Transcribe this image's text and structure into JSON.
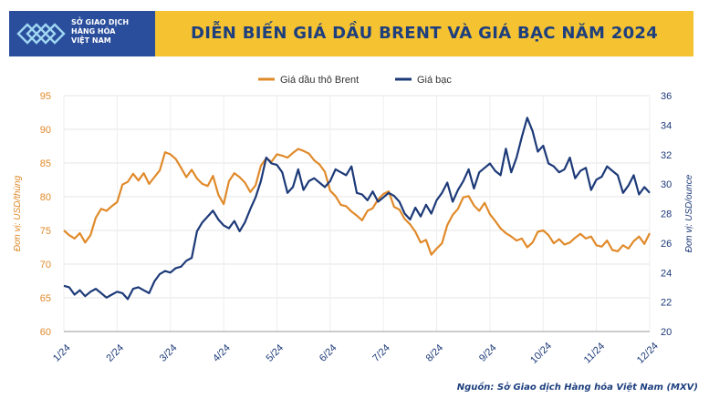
{
  "title": "DIỄN BIẾN GIÁ DẦU BRENT VÀ GIÁ BẠC NĂM 2024",
  "logo": {
    "lines": [
      "SỞ GIAO DỊCH",
      "HÀNG HÓA",
      "VIỆT NAM"
    ],
    "icon": "mxv-logo-icon"
  },
  "source": "Nguồn: Sở Giao dịch Hàng hóa Việt Nam (MXV)",
  "colors": {
    "brent": "#e08a2a",
    "silver": "#1d3a78",
    "title_band": "#f5c232",
    "logo_bg": "#2a4e9c"
  },
  "chart_data": {
    "type": "line",
    "title": "DIỄN BIẾN GIÁ DẦU BRENT VÀ GIÁ BẠC NĂM 2024",
    "x_tick_labels": [
      "1/24",
      "2/24",
      "3/24",
      "4/24",
      "5/24",
      "6/24",
      "7/24",
      "8/24",
      "9/24",
      "10/24",
      "11/24",
      "12/24"
    ],
    "legend": {
      "placement": "top-center"
    },
    "y_left": {
      "label": "Đơn vị: USD/thùng",
      "ylim": [
        60,
        95
      ],
      "ticks": [
        60,
        65,
        70,
        75,
        80,
        85,
        90,
        95
      ]
    },
    "y_right": {
      "label": "Đơn vị: USD/ounce",
      "ylim": [
        20,
        36
      ],
      "ticks": [
        20,
        22,
        24,
        26,
        28,
        30,
        32,
        34,
        36
      ]
    },
    "grid": true,
    "series": [
      {
        "name": "Giá dầu thô Brent",
        "axis": "left",
        "x": [
          0,
          0.1,
          0.2,
          0.3,
          0.4,
          0.5,
          0.6,
          0.7,
          0.8,
          0.9,
          1.0,
          1.1,
          1.2,
          1.3,
          1.4,
          1.5,
          1.6,
          1.7,
          1.8,
          1.9,
          2.0,
          2.1,
          2.2,
          2.3,
          2.4,
          2.5,
          2.6,
          2.7,
          2.8,
          2.9,
          3.0,
          3.1,
          3.2,
          3.3,
          3.4,
          3.5,
          3.6,
          3.7,
          3.8,
          3.9,
          4.0,
          4.1,
          4.2,
          4.3,
          4.4,
          4.5,
          4.6,
          4.7,
          4.8,
          4.9,
          5.0,
          5.1,
          5.2,
          5.3,
          5.4,
          5.5,
          5.6,
          5.7,
          5.8,
          5.9,
          6.0,
          6.1,
          6.2,
          6.3,
          6.4,
          6.5,
          6.6,
          6.7,
          6.8,
          6.9,
          7.0,
          7.1,
          7.2,
          7.3,
          7.4,
          7.5,
          7.6,
          7.7,
          7.8,
          7.9,
          8.0,
          8.1,
          8.2,
          8.3,
          8.4,
          8.5,
          8.6,
          8.7,
          8.8,
          8.9,
          9.0,
          9.1,
          9.2,
          9.3,
          9.4,
          9.5,
          9.6,
          9.7,
          9.8,
          9.9,
          10.0,
          10.1,
          10.2,
          10.3,
          10.4,
          10.5,
          10.6,
          10.7,
          10.8,
          10.9,
          11.0
        ],
        "values": [
          75,
          74.3,
          73.8,
          74.6,
          73.2,
          74.3,
          76.9,
          78.2,
          77.9,
          78.6,
          79.2,
          81.8,
          82.2,
          83.4,
          82.4,
          83.5,
          81.9,
          82.9,
          83.9,
          86.6,
          86.3,
          85.6,
          84.3,
          82.9,
          84.0,
          82.7,
          81.9,
          81.6,
          83.1,
          80.3,
          78.9,
          82.3,
          83.5,
          82.9,
          82.1,
          80.7,
          81.7,
          84.6,
          85.7,
          85.2,
          86.3,
          86.1,
          85.8,
          86.5,
          87.1,
          86.8,
          86.4,
          85.4,
          84.8,
          83.7,
          80.9,
          80.1,
          78.8,
          78.6,
          77.8,
          77.2,
          76.5,
          77.9,
          78.3,
          79.6,
          80.4,
          80.8,
          78.5,
          78.1,
          76.7,
          75.9,
          74.8,
          73.2,
          73.6,
          71.4,
          72.3,
          73.1,
          75.8,
          77.3,
          78.2,
          79.9,
          80.1,
          78.7,
          77.9,
          79.1,
          77.4,
          76.4,
          75.3,
          74.6,
          74.1,
          73.5,
          73.8,
          72.5,
          73.2,
          74.8,
          75.0,
          74.3,
          73.1,
          73.7,
          72.9,
          73.2,
          73.9,
          74.5,
          73.8,
          74.1,
          72.8,
          72.6,
          73.5,
          72.1,
          71.9,
          72.8,
          72.3,
          73.4,
          74.1,
          73.0,
          74.6
        ]
      },
      {
        "name": "Giá bạc",
        "axis": "right",
        "x": [
          0,
          0.1,
          0.2,
          0.3,
          0.4,
          0.5,
          0.6,
          0.7,
          0.8,
          0.9,
          1.0,
          1.1,
          1.2,
          1.3,
          1.4,
          1.5,
          1.6,
          1.7,
          1.8,
          1.9,
          2.0,
          2.1,
          2.2,
          2.3,
          2.4,
          2.5,
          2.6,
          2.7,
          2.8,
          2.9,
          3.0,
          3.1,
          3.2,
          3.3,
          3.4,
          3.5,
          3.6,
          3.7,
          3.8,
          3.9,
          4.0,
          4.1,
          4.2,
          4.3,
          4.4,
          4.5,
          4.6,
          4.7,
          4.8,
          4.9,
          5.0,
          5.1,
          5.2,
          5.3,
          5.4,
          5.5,
          5.6,
          5.7,
          5.8,
          5.9,
          6.0,
          6.1,
          6.2,
          6.3,
          6.4,
          6.5,
          6.6,
          6.7,
          6.8,
          6.9,
          7.0,
          7.1,
          7.2,
          7.3,
          7.4,
          7.5,
          7.6,
          7.7,
          7.8,
          7.9,
          8.0,
          8.1,
          8.2,
          8.3,
          8.4,
          8.5,
          8.6,
          8.7,
          8.8,
          8.9,
          9.0,
          9.1,
          9.2,
          9.3,
          9.4,
          9.5,
          9.6,
          9.7,
          9.8,
          9.9,
          10.0,
          10.1,
          10.2,
          10.3,
          10.4,
          10.5,
          10.6,
          10.7,
          10.8,
          10.9,
          11.0
        ],
        "values": [
          23.1,
          23.0,
          22.5,
          22.8,
          22.4,
          22.7,
          22.9,
          22.6,
          22.3,
          22.5,
          22.7,
          22.6,
          22.2,
          22.9,
          23.0,
          22.8,
          22.6,
          23.4,
          23.9,
          24.1,
          24.0,
          24.3,
          24.4,
          24.8,
          25.0,
          26.8,
          27.4,
          27.8,
          28.2,
          27.6,
          27.2,
          27.0,
          27.5,
          26.8,
          27.4,
          28.3,
          29.1,
          30.2,
          31.8,
          31.4,
          31.3,
          30.8,
          29.4,
          29.8,
          31.0,
          29.6,
          30.2,
          30.4,
          30.1,
          29.8,
          30.2,
          31.0,
          30.8,
          30.6,
          31.2,
          29.4,
          29.3,
          28.9,
          29.5,
          28.8,
          29.1,
          29.4,
          29.2,
          28.8,
          28.0,
          27.6,
          28.4,
          27.8,
          28.6,
          28.0,
          28.9,
          29.4,
          30.1,
          28.8,
          29.6,
          30.2,
          31.0,
          29.7,
          30.8,
          31.1,
          31.4,
          30.9,
          30.6,
          32.4,
          30.8,
          31.8,
          33.2,
          34.5,
          33.6,
          32.2,
          32.6,
          31.4,
          31.2,
          30.8,
          31.0,
          31.8,
          30.4,
          30.9,
          31.1,
          29.6,
          30.3,
          30.5,
          31.2,
          30.9,
          30.6,
          29.4,
          29.9,
          30.6,
          29.3,
          29.8,
          29.4
        ]
      }
    ]
  }
}
